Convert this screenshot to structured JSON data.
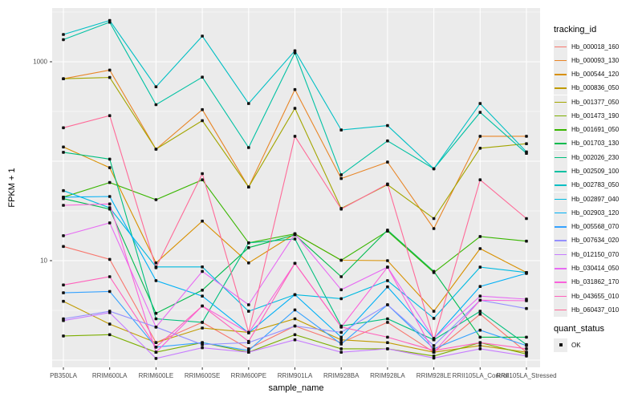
{
  "figure": {
    "background": "#FFFFFF",
    "panel_background": "#EBEBEB",
    "grid_color": "#FFFFFF",
    "point_color": "#111111",
    "tick_label_color": "#4D4D4D"
  },
  "chart_data": {
    "type": "line",
    "title": "",
    "xlabel": "sample_name",
    "ylabel": "FPKM + 1",
    "y_scale": "log10",
    "ylim": [
      0.85,
      3500
    ],
    "grid": "on",
    "legend_position": "right",
    "legend_title": "tracking_id",
    "y_ticks": [
      {
        "label": "1000",
        "value": 1000
      },
      {
        "label": "10",
        "value": 10
      }
    ],
    "y_gridlines_major": [
      1,
      10,
      100,
      1000
    ],
    "y_gridlines_minor": [
      3.162,
      31.62,
      316.2,
      3162
    ],
    "categories": [
      "PB350LA",
      "RRIM600LA",
      "RRIM600LE",
      "RRIM600SE",
      "RRIM600PE",
      "RRIM901LA",
      "RRIM928BA",
      "RRIM928LA",
      "RRIM928LE",
      "RRII105LA_Control",
      "RRII105LA_Stressed"
    ],
    "series": [
      {
        "tracking_id": "Hb_000018_160",
        "color": "#F8766D",
        "values": [
          13.9,
          10.3,
          1.5,
          2.4,
          1.3,
          2.2,
          1.5,
          2.4,
          1.2,
          2.9,
          1.2
        ]
      },
      {
        "tracking_id": "Hb_000093_130",
        "color": "#E88526",
        "values": [
          675,
          825,
          132,
          330,
          55,
          525,
          67,
          98,
          21,
          178,
          178
        ]
      },
      {
        "tracking_id": "Hb_000544_120",
        "color": "#D89000",
        "values": [
          139,
          86,
          9.5,
          25,
          9.5,
          18.6,
          10.1,
          10,
          3.1,
          13.2,
          7.6
        ]
      },
      {
        "tracking_id": "Hb_000836_050",
        "color": "#C09B00",
        "values": [
          3.9,
          2.3,
          1.5,
          2.1,
          1.9,
          2.6,
          1.6,
          1.5,
          1.2,
          1.4,
          1.2
        ]
      },
      {
        "tracking_id": "Hb_001377_050",
        "color": "#A3A500",
        "values": [
          675,
          695,
          132,
          256,
          55,
          340,
          33.5,
          58,
          26.5,
          135,
          150
        ]
      },
      {
        "tracking_id": "Hb_001473_190",
        "color": "#7CAE00",
        "values": [
          1.75,
          1.8,
          1.2,
          1.5,
          1.2,
          1.8,
          1.3,
          1.3,
          1.1,
          1.5,
          1.15
        ]
      },
      {
        "tracking_id": "Hb_001691_050",
        "color": "#39B600",
        "values": [
          43.5,
          61,
          41,
          65,
          15.1,
          18.6,
          10.1,
          19.8,
          7.6,
          17.5,
          15.7
        ]
      },
      {
        "tracking_id": "Hb_001703_130",
        "color": "#00BB4E",
        "values": [
          42,
          33,
          2.95,
          5.05,
          13.5,
          18.2,
          6.9,
          20.3,
          7.8,
          1.7,
          1.7
        ]
      },
      {
        "tracking_id": "Hb_002026_230",
        "color": "#00BF7D",
        "values": [
          123,
          105,
          2.6,
          2.4,
          15.1,
          16.5,
          2.2,
          2.6,
          1.6,
          3.1,
          1.43
        ]
      },
      {
        "tracking_id": "Hb_002509_100",
        "color": "#00C1A3",
        "values": [
          1670,
          2500,
          370,
          700,
          137,
          1230,
          73,
          160,
          84,
          310,
          120
        ]
      },
      {
        "tracking_id": "Hb_002783_050",
        "color": "#00BFC4",
        "values": [
          1880,
          2600,
          560,
          1810,
          380,
          1290,
          206,
          228,
          84,
          380,
          124
        ]
      },
      {
        "tracking_id": "Hb_002897_040",
        "color": "#00BAE0",
        "values": [
          50.6,
          34,
          8.65,
          8.65,
          3.1,
          4.55,
          4.15,
          6.3,
          2.63,
          8.6,
          7.6
        ]
      },
      {
        "tracking_id": "Hb_002903_120",
        "color": "#00B0F6",
        "values": [
          43.5,
          44.2,
          6.3,
          4.4,
          1.88,
          4.55,
          1.7,
          5.45,
          1.65,
          5.5,
          7.45
        ]
      },
      {
        "tracking_id": "Hb_005568_070",
        "color": "#35A2FF",
        "values": [
          4.75,
          4.9,
          1.35,
          1.5,
          1.25,
          3.2,
          1.45,
          3.6,
          1.3,
          2.0,
          1.4
        ]
      },
      {
        "tracking_id": "Hb_007634_020",
        "color": "#9590FF",
        "values": [
          2.6,
          3.1,
          2.15,
          1.43,
          1.5,
          2.2,
          1.9,
          3.6,
          1.4,
          4.0,
          3.3
        ]
      },
      {
        "tracking_id": "Hb_012150_070",
        "color": "#C77CFF",
        "values": [
          2.5,
          3.0,
          1.04,
          1.33,
          1.2,
          1.6,
          1.2,
          1.3,
          1.05,
          1.3,
          1.1
        ]
      },
      {
        "tracking_id": "Hb_030414_050",
        "color": "#E76BF3",
        "values": [
          17.8,
          24,
          2.15,
          7.8,
          3.6,
          18.6,
          5.1,
          8.6,
          1.65,
          4.4,
          4.1
        ]
      },
      {
        "tracking_id": "Hb_031862_170",
        "color": "#FA62DB",
        "values": [
          36,
          37.2,
          1.2,
          3.5,
          1.88,
          9.4,
          2.15,
          8.6,
          1.2,
          4.0,
          3.95
        ]
      },
      {
        "tracking_id": "Hb_043655_010",
        "color": "#FF62BC",
        "values": [
          5.7,
          6.9,
          1.35,
          3.5,
          1.54,
          9.4,
          2.15,
          1.7,
          1.25,
          1.5,
          1.3
        ]
      },
      {
        "tracking_id": "Hb_060437_010",
        "color": "#FF6A98",
        "values": [
          217,
          287,
          8.5,
          75,
          1.9,
          178,
          33,
          59,
          1.6,
          65,
          26.5
        ]
      }
    ]
  },
  "quant_legend": {
    "title": "quant_status",
    "items": [
      {
        "label": "OK",
        "marker": "black-square"
      }
    ]
  }
}
